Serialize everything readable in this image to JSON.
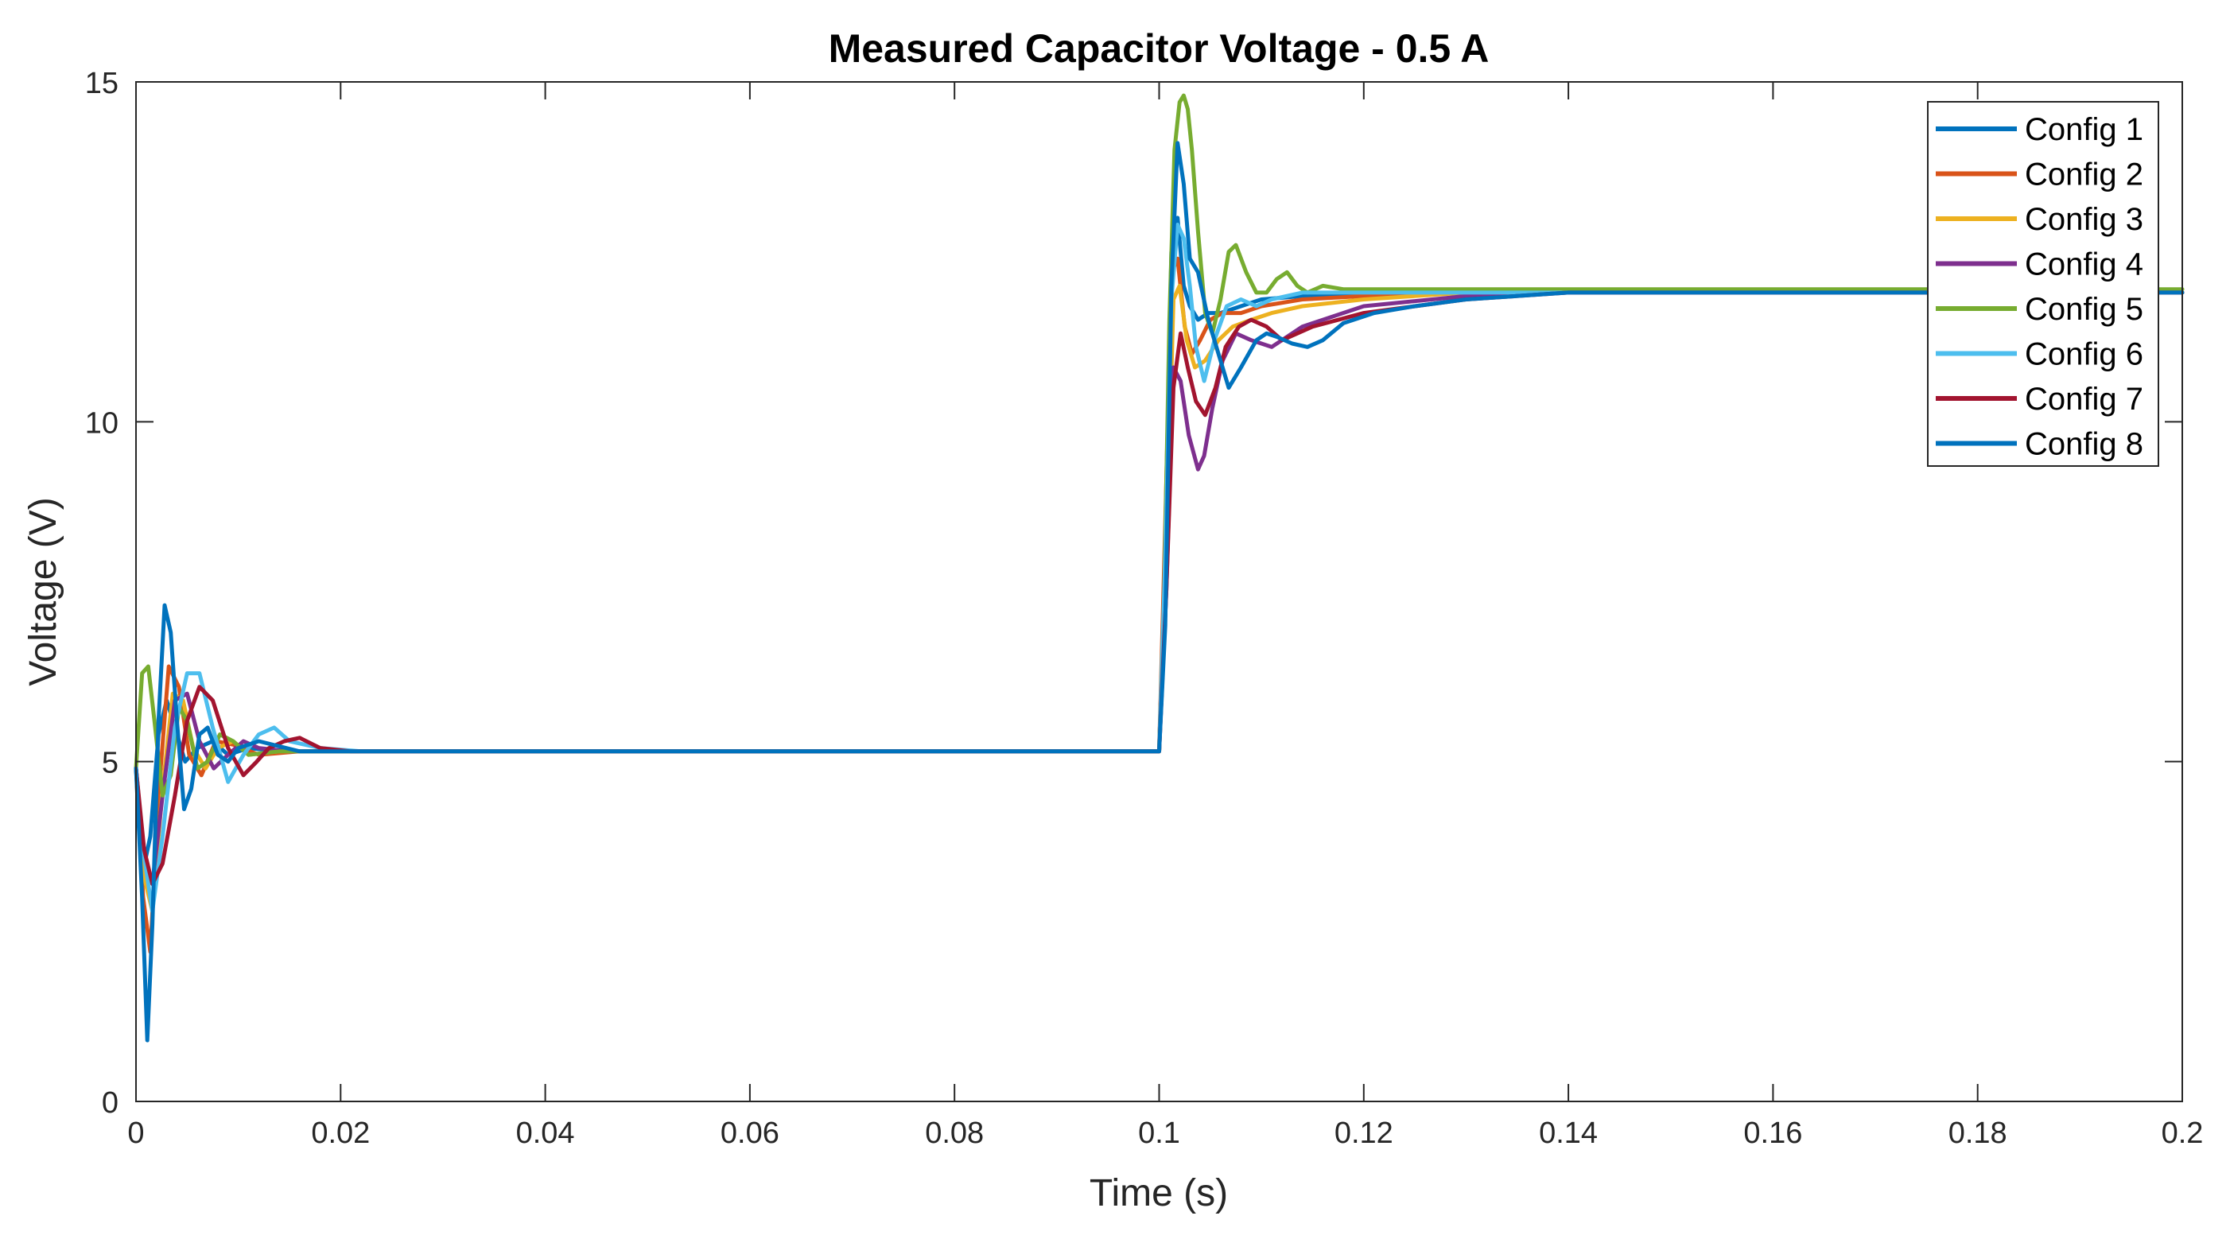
{
  "chart_data": {
    "type": "line",
    "title": "Measured Capacitor Voltage - 0.5 A",
    "xlabel": "Time (s)",
    "ylabel": "Voltage (V)",
    "xlim": [
      0,
      0.2
    ],
    "ylim": [
      0,
      15
    ],
    "xticks": [
      0,
      0.02,
      0.04,
      0.06,
      0.08,
      0.1,
      0.12,
      0.14,
      0.16,
      0.18,
      0.2
    ],
    "xtick_labels": [
      "0",
      "0.02",
      "0.04",
      "0.06",
      "0.08",
      "0.1",
      "0.12",
      "0.14",
      "0.16",
      "0.18",
      "0.2"
    ],
    "yticks": [
      0,
      5,
      10,
      15
    ],
    "ytick_labels": [
      "0",
      "5",
      "10",
      "15"
    ],
    "grid": false,
    "legend_position": "top-right",
    "series": [
      {
        "name": "Config 1",
        "color": "#0072BD",
        "x": [
          0,
          0.0007,
          0.0014,
          0.0022,
          0.003,
          0.0038,
          0.0048,
          0.006,
          0.0075,
          0.009,
          0.011,
          0.014,
          0.018,
          0.022,
          0.1,
          0.1006,
          0.1012,
          0.1018,
          0.1024,
          0.103,
          0.1038,
          0.1048,
          0.106,
          0.108,
          0.11,
          0.114,
          0.12,
          0.13,
          0.14,
          0.16,
          0.2
        ],
        "y": [
          4.9,
          3.4,
          3.9,
          5.4,
          5.9,
          5.5,
          5.0,
          5.2,
          5.3,
          5.1,
          5.2,
          5.15,
          5.15,
          5.15,
          5.15,
          8.0,
          12.5,
          13.0,
          12.0,
          11.7,
          11.5,
          11.6,
          11.6,
          11.7,
          11.8,
          11.85,
          11.85,
          11.9,
          11.9,
          11.9,
          11.9
        ]
      },
      {
        "name": "Config 2",
        "color": "#D95319",
        "x": [
          0,
          0.0007,
          0.0014,
          0.0022,
          0.0032,
          0.0042,
          0.0052,
          0.0064,
          0.0078,
          0.0095,
          0.012,
          0.016,
          0.02,
          0.1,
          0.1006,
          0.1012,
          0.1018,
          0.1025,
          0.1032,
          0.104,
          0.105,
          0.1062,
          0.108,
          0.11,
          0.114,
          0.12,
          0.13,
          0.14,
          0.2
        ],
        "y": [
          4.9,
          3.0,
          2.2,
          4.5,
          6.4,
          6.1,
          5.1,
          4.8,
          5.3,
          5.25,
          5.1,
          5.15,
          5.15,
          5.15,
          8.5,
          12.2,
          12.4,
          11.4,
          11.0,
          11.2,
          11.5,
          11.6,
          11.6,
          11.7,
          11.8,
          11.85,
          11.9,
          11.9,
          11.9
        ]
      },
      {
        "name": "Config 3",
        "color": "#EDB120",
        "x": [
          0,
          0.0008,
          0.0016,
          0.0026,
          0.0036,
          0.0046,
          0.0056,
          0.0068,
          0.008,
          0.0095,
          0.011,
          0.014,
          0.02,
          0.1,
          0.1007,
          0.1014,
          0.102,
          0.1027,
          0.1035,
          0.1045,
          0.1058,
          0.1072,
          0.109,
          0.111,
          0.114,
          0.12,
          0.13,
          0.14,
          0.2
        ],
        "y": [
          4.9,
          3.3,
          2.8,
          4.6,
          6.0,
          5.9,
          5.2,
          4.9,
          5.2,
          5.3,
          5.1,
          5.15,
          5.15,
          5.15,
          8.0,
          11.8,
          12.0,
          11.2,
          10.8,
          10.9,
          11.2,
          11.4,
          11.5,
          11.6,
          11.7,
          11.8,
          11.9,
          11.9,
          11.9
        ]
      },
      {
        "name": "Config 4",
        "color": "#7E2F8E",
        "x": [
          0,
          0.0008,
          0.0016,
          0.0026,
          0.0038,
          0.005,
          0.0062,
          0.0076,
          0.009,
          0.0105,
          0.012,
          0.015,
          0.02,
          0.1,
          0.1007,
          0.1014,
          0.1021,
          0.1029,
          0.1038,
          0.1044,
          0.1052,
          0.1062,
          0.1075,
          0.109,
          0.111,
          0.114,
          0.12,
          0.13,
          0.14,
          0.2
        ],
        "y": [
          4.9,
          3.6,
          3.2,
          4.5,
          5.9,
          6.0,
          5.3,
          4.9,
          5.1,
          5.3,
          5.2,
          5.15,
          5.15,
          5.15,
          7.5,
          10.8,
          10.6,
          9.8,
          9.3,
          9.5,
          10.2,
          10.9,
          11.3,
          11.2,
          11.1,
          11.4,
          11.7,
          11.85,
          11.9,
          11.9
        ]
      },
      {
        "name": "Config 5",
        "color": "#77AC30",
        "x": [
          0,
          0.0006,
          0.0012,
          0.0018,
          0.0026,
          0.0034,
          0.0042,
          0.005,
          0.006,
          0.007,
          0.0082,
          0.0095,
          0.011,
          0.014,
          0.02,
          0.1,
          0.1005,
          0.101,
          0.1015,
          0.102,
          0.1024,
          0.1028,
          0.1032,
          0.1038,
          0.1045,
          0.1052,
          0.106,
          0.1068,
          0.1075,
          0.1085,
          0.1095,
          0.1105,
          0.1115,
          0.1125,
          0.1135,
          0.1145,
          0.116,
          0.118,
          0.122,
          0.13,
          0.14,
          0.2
        ],
        "y": [
          4.9,
          6.3,
          6.4,
          5.6,
          4.5,
          4.8,
          5.8,
          5.6,
          4.9,
          5.0,
          5.4,
          5.3,
          5.1,
          5.15,
          5.15,
          5.15,
          7.5,
          11.5,
          14.0,
          14.7,
          14.8,
          14.6,
          14.0,
          12.8,
          11.6,
          11.3,
          11.8,
          12.5,
          12.6,
          12.2,
          11.9,
          11.9,
          12.1,
          12.2,
          12.0,
          11.9,
          12.0,
          11.95,
          11.95,
          11.95,
          11.95,
          11.95
        ]
      },
      {
        "name": "Config 6",
        "color": "#4DBEEE",
        "x": [
          0,
          0.0008,
          0.0016,
          0.0026,
          0.0038,
          0.005,
          0.0062,
          0.0075,
          0.009,
          0.0105,
          0.012,
          0.0135,
          0.015,
          0.018,
          0.022,
          0.1,
          0.1006,
          0.1012,
          0.1018,
          0.1024,
          0.103,
          0.1036,
          0.1044,
          0.1054,
          0.1066,
          0.108,
          0.1095,
          0.111,
          0.114,
          0.12,
          0.13,
          0.14,
          0.2
        ],
        "y": [
          4.9,
          3.6,
          2.8,
          3.9,
          5.5,
          6.3,
          6.3,
          5.5,
          4.7,
          5.1,
          5.4,
          5.5,
          5.3,
          5.2,
          5.15,
          5.15,
          8.0,
          11.8,
          12.9,
          12.7,
          12.0,
          11.1,
          10.6,
          11.2,
          11.7,
          11.8,
          11.7,
          11.8,
          11.9,
          11.9,
          11.9,
          11.9,
          11.9
        ]
      },
      {
        "name": "Config 7",
        "color": "#A2142F",
        "x": [
          0,
          0.0008,
          0.0016,
          0.0026,
          0.0038,
          0.005,
          0.0062,
          0.0075,
          0.009,
          0.0105,
          0.0118,
          0.013,
          0.0145,
          0.016,
          0.018,
          0.021,
          0.1,
          0.1007,
          0.1014,
          0.1021,
          0.1028,
          0.1036,
          0.1045,
          0.1055,
          0.1065,
          0.1078,
          0.109,
          0.1105,
          0.112,
          0.115,
          0.12,
          0.13,
          0.14,
          0.2
        ],
        "y": [
          4.9,
          3.7,
          3.2,
          3.5,
          4.5,
          5.6,
          6.1,
          5.9,
          5.2,
          4.8,
          5.0,
          5.2,
          5.3,
          5.35,
          5.2,
          5.15,
          5.15,
          7.5,
          10.5,
          11.3,
          10.8,
          10.3,
          10.1,
          10.5,
          11.1,
          11.4,
          11.5,
          11.4,
          11.2,
          11.4,
          11.6,
          11.8,
          11.9,
          11.9
        ]
      },
      {
        "name": "Config 8",
        "color": "#0072BD",
        "x": [
          0,
          0.0006,
          0.0011,
          0.0016,
          0.0022,
          0.0028,
          0.0034,
          0.004,
          0.0047,
          0.0054,
          0.0062,
          0.007,
          0.008,
          0.009,
          0.01,
          0.012,
          0.016,
          0.02,
          0.1,
          0.1006,
          0.1012,
          0.1018,
          0.1024,
          0.103,
          0.1038,
          0.1048,
          0.1058,
          0.1068,
          0.108,
          0.1095,
          0.1105,
          0.1115,
          0.113,
          0.1145,
          0.116,
          0.118,
          0.121,
          0.125,
          0.13,
          0.14,
          0.2
        ],
        "y": [
          4.9,
          3.0,
          0.9,
          2.6,
          5.6,
          7.3,
          6.9,
          5.6,
          4.3,
          4.6,
          5.4,
          5.5,
          5.1,
          5.0,
          5.2,
          5.3,
          5.15,
          5.15,
          5.15,
          7.0,
          12.0,
          14.1,
          13.5,
          12.4,
          12.2,
          11.5,
          11.0,
          10.5,
          10.8,
          11.2,
          11.3,
          11.25,
          11.15,
          11.1,
          11.2,
          11.45,
          11.6,
          11.7,
          11.8,
          11.9,
          11.9
        ]
      }
    ]
  }
}
